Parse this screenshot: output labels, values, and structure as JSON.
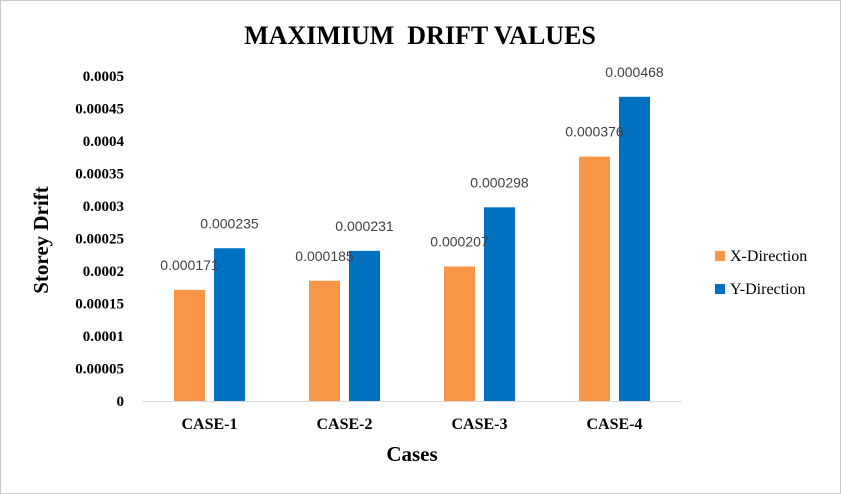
{
  "chart_data": {
    "type": "bar",
    "title": "MAXIMIUM  DRIFT VALUES",
    "xlabel": "Cases",
    "ylabel": "Storey Drift",
    "categories": [
      "CASE-1",
      "CASE-2",
      "CASE-3",
      "CASE-4"
    ],
    "series": [
      {
        "name": "X-Direction",
        "color": "#f79646",
        "values": [
          0.000171,
          0.000185,
          0.000207,
          0.000376
        ],
        "labels": [
          "0.000171",
          "0.000185",
          "0.000207",
          "0.000376"
        ]
      },
      {
        "name": "Y-Direction",
        "color": "#0070c0",
        "values": [
          0.000235,
          0.000231,
          0.000298,
          0.000468
        ],
        "labels": [
          "0.000235",
          "0.000231",
          "0.000298",
          "0.000468"
        ]
      }
    ],
    "ylim": [
      0,
      0.0005
    ],
    "yticks": [
      0,
      5e-05,
      0.0001,
      0.00015,
      0.0002,
      0.00025,
      0.0003,
      0.00035,
      0.0004,
      0.00045,
      0.0005
    ],
    "ytick_labels": [
      "0",
      "0.00005",
      "0.0001",
      "0.00015",
      "0.0002",
      "0.00025",
      "0.0003",
      "0.00035",
      "0.0004",
      "0.00045",
      "0.0005"
    ],
    "grid": false,
    "legend_position": "right"
  }
}
